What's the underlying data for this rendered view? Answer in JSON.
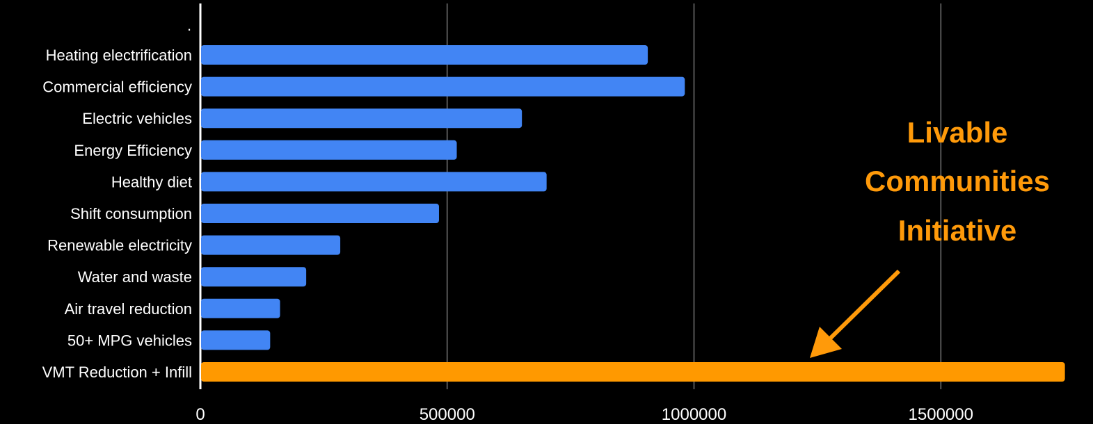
{
  "chart_data": {
    "type": "bar",
    "orientation": "horizontal",
    "title": "",
    "xlabel": "",
    "ylabel": "",
    "corner_mark": ".",
    "categories": [
      "Heating electrification",
      "Commercial efficiency",
      "Electric vehicles",
      "Energy Efficiency",
      "Healthy diet",
      "Shift consumption",
      "Renewable electricity",
      "Water and waste",
      "Air travel reduction",
      "50+ MPG vehicles",
      "VMT Reduction + Infill"
    ],
    "values": [
      905000,
      980000,
      650000,
      518000,
      700000,
      482000,
      282000,
      213000,
      160000,
      140000,
      1750000
    ],
    "highlight_index": 10,
    "colors": {
      "default": "#4285f4",
      "highlight": "#ff9900",
      "annotation": "#ff9a0a",
      "grid": "#555555",
      "axis": "#ffffff",
      "background": "#000000"
    },
    "xlim": [
      0,
      2000000
    ],
    "x_ticks": [
      0,
      500000,
      1000000,
      1500000
    ],
    "x_tick_labels": [
      "0",
      "500000",
      "1000000",
      "1500000"
    ],
    "grid": true,
    "annotation": {
      "lines": [
        "Livable",
        "Communities",
        "Initiative"
      ],
      "points_to_index": 10
    }
  }
}
